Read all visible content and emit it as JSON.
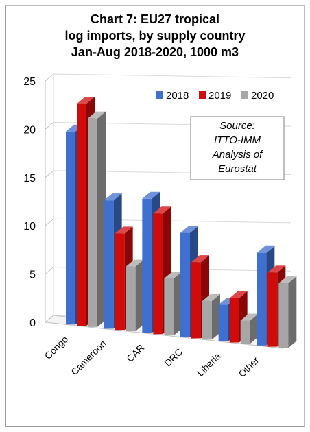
{
  "chart_data": {
    "type": "bar",
    "title_lines": [
      "Chart 7: EU27 tropical",
      "log imports, by supply country",
      "Jan-Aug 2018-2020, 1000 m3"
    ],
    "categories": [
      "Congo",
      "Cameroon",
      "CAR",
      "DRC",
      "Liberia",
      "Other"
    ],
    "series": [
      {
        "name": "2018",
        "color": "#3f6fcf",
        "values": [
          20.0,
          13.3,
          13.9,
          10.8,
          3.8,
          9.6
        ]
      },
      {
        "name": "2019",
        "color": "#d10a0a",
        "values": [
          23.0,
          10.0,
          12.5,
          7.9,
          4.6,
          7.7
        ]
      },
      {
        "name": "2020",
        "color": "#a6a6a6",
        "values": [
          21.6,
          6.7,
          5.9,
          4.0,
          2.4,
          6.7
        ]
      }
    ],
    "yticks": [
      0,
      5,
      10,
      15,
      20,
      25
    ],
    "ylim": [
      0,
      25
    ],
    "legend_position": "top-right",
    "annotation_lines": [
      "Source:",
      "ITTO-IMM",
      "Analysis of",
      "Eurostat"
    ]
  }
}
